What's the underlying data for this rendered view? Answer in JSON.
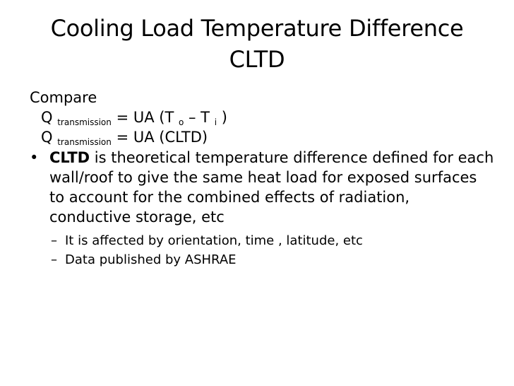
{
  "title": {
    "line1": "Cooling Load Temperature Difference",
    "line2": "CLTD"
  },
  "body": {
    "compare": "Compare",
    "eq1": {
      "q": "Q",
      "sub": "transmission",
      "mid": "= UA (T",
      "sub_o": "o",
      "dash": "– T",
      "sub_i": "i",
      "end": ")"
    },
    "eq2": {
      "q": "Q",
      "sub": "transmission",
      "rest": "= UA (CLTD)"
    },
    "bullet": {
      "marker": "•",
      "bold": "CLTD",
      "text": " is theoretical temperature difference defined for each wall/roof to give the same heat load for exposed surfaces to account for the combined effects of radiation, conductive storage, etc"
    },
    "sub_bullets": [
      {
        "marker": "–",
        "text": "It is affected by orientation, time , latitude, etc"
      },
      {
        "marker": "–",
        "text": "Data published by ASHRAE"
      }
    ]
  }
}
